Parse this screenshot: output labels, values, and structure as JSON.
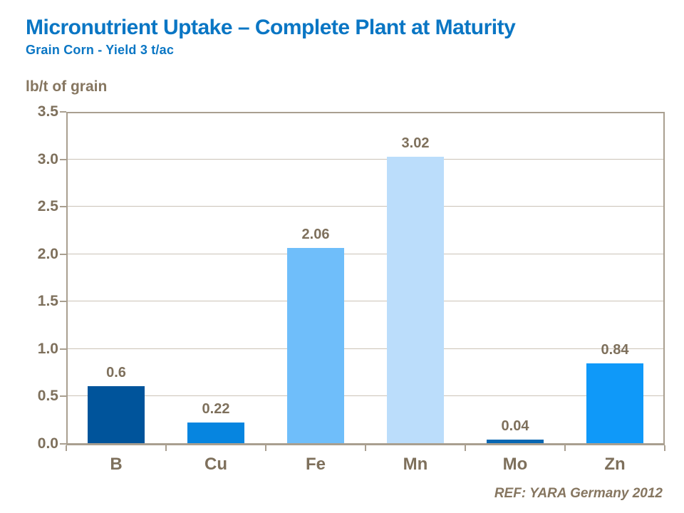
{
  "header": {
    "title": "Micronutrient Uptake – Complete Plant at Maturity",
    "subtitle": "Grain Corn - Yield 3 t/ac"
  },
  "footer": {
    "text": "REF: YARA Germany 2012"
  },
  "colors": {
    "title_blue": "#0A76C4",
    "label_taupe": "#7E705C",
    "axis_line": "#A99F90",
    "gridline": "#CBC3B7",
    "bar_colors": [
      "#00549B",
      "#0685E0",
      "#6FBEFA",
      "#BBDDFB",
      "#0767B2",
      "#0F99F9"
    ]
  },
  "chart_data": {
    "type": "bar",
    "categories": [
      "B",
      "Cu",
      "Fe",
      "Mn",
      "Mo",
      "Zn"
    ],
    "values": [
      0.6,
      0.22,
      2.06,
      3.02,
      0.04,
      0.84
    ],
    "value_labels": [
      "0.6",
      "0.22",
      "2.06",
      "3.02",
      "0.04",
      "0.84"
    ],
    "title": "Micronutrient Uptake – Complete Plant at Maturity",
    "subtitle": "Grain Corn - Yield 3 t/ac",
    "xlabel": "",
    "ylabel": "lb/t of grain",
    "ylim": [
      0,
      3.5
    ],
    "ytick_step": 0.5,
    "ytick_labels": [
      "0.0",
      "0.5",
      "1.0",
      "1.5",
      "2.0",
      "2.5",
      "3.0",
      "3.5"
    ],
    "grid": true,
    "legend": "none",
    "bar_colors": [
      "#00549B",
      "#0685E0",
      "#6FBEFA",
      "#BBDDFB",
      "#0767B2",
      "#0F99F9"
    ]
  }
}
